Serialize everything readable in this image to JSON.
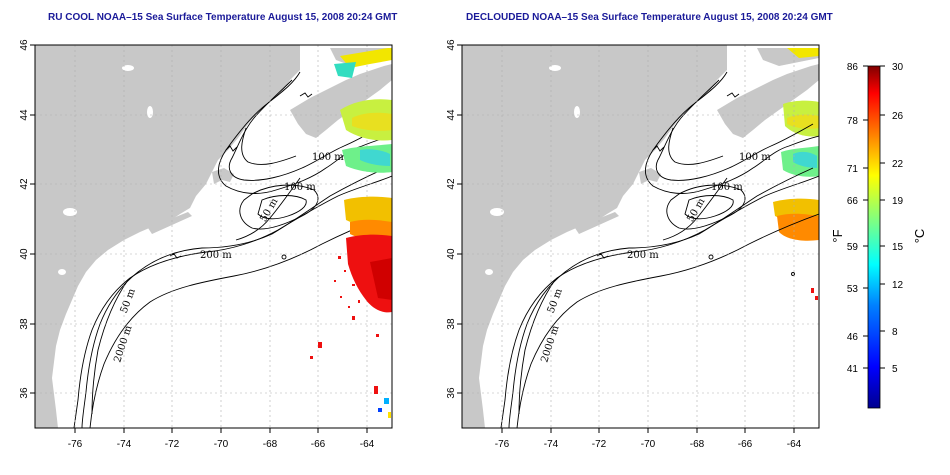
{
  "panels": [
    {
      "id": "left",
      "title": "RU COOL NOAA–15 Sea Surface Temperature August 15, 2008 20:24 GMT"
    },
    {
      "id": "right",
      "title": "DECLOUDED NOAA–15 Sea Surface Temperature August 15, 2008 20:24 GMT"
    }
  ],
  "map": {
    "lon_range": [
      -77,
      -63
    ],
    "lat_range": [
      35,
      46
    ],
    "lon_ticks": [
      "-76",
      "-74",
      "-72",
      "-70",
      "-68",
      "-66",
      "-64"
    ],
    "lat_ticks": [
      "46",
      "44",
      "42",
      "40",
      "38",
      "36"
    ],
    "contour_labels": [
      "100 m",
      "100 m",
      "50 m",
      "200 m",
      "50 m",
      "2000 m"
    ],
    "colors": {
      "land": "#c8c8c8",
      "ocean": "#ffffff",
      "contour": "#000000",
      "grid": "#b0b0b0"
    }
  },
  "colorbar": {
    "fahrenheit_ticks": [
      "86",
      "78",
      "71",
      "66",
      "59",
      "53",
      "46",
      "41"
    ],
    "celsius_ticks": [
      "30",
      "26",
      "22",
      "19",
      "15",
      "12",
      "8",
      "5"
    ],
    "fahrenheit_unit": "°F",
    "celsius_unit": "°C",
    "range_celsius": [
      1,
      30
    ],
    "colors": [
      "#00008f",
      "#0000ff",
      "#0080ff",
      "#00ffff",
      "#80ff80",
      "#ffff00",
      "#ff8000",
      "#ff0000",
      "#800000"
    ]
  }
}
